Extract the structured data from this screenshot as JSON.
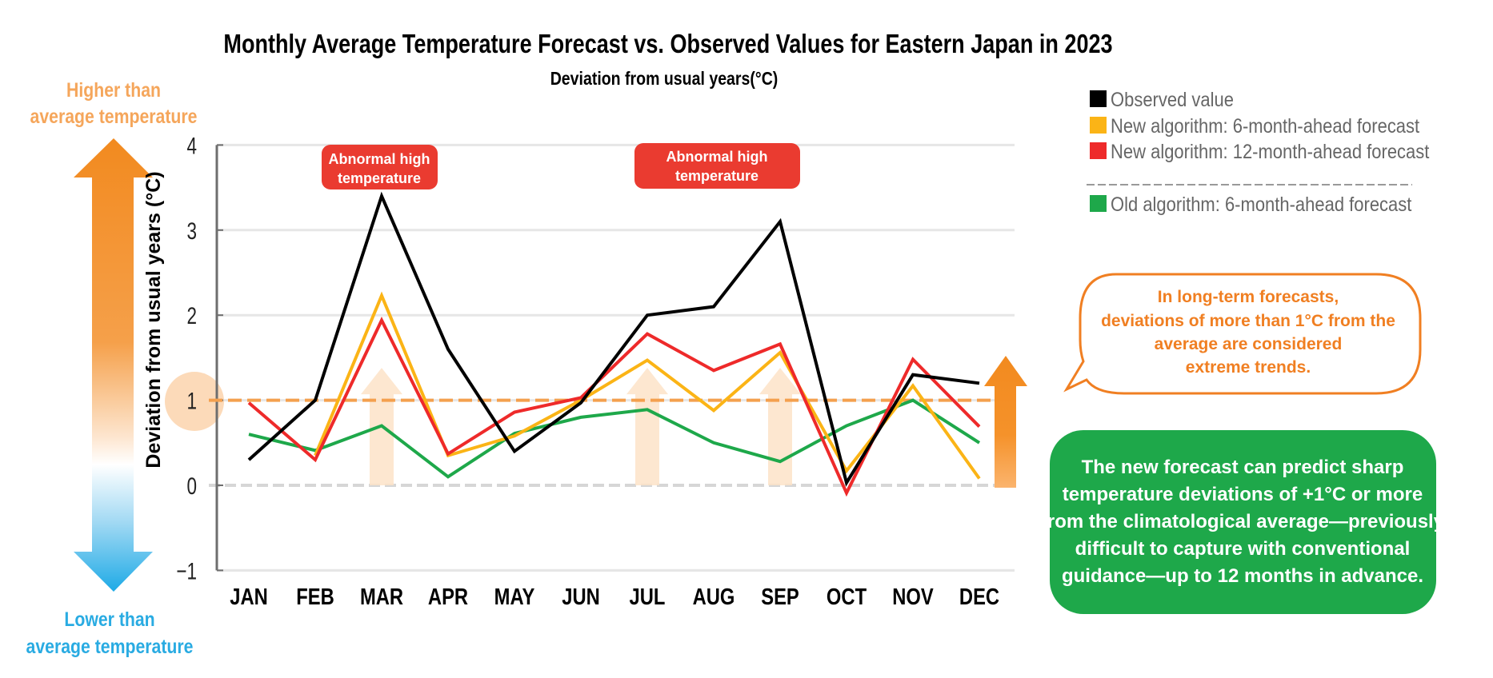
{
  "header": {
    "title": "Monthly Average Temperature Forecast vs. Observed Values for Eastern Japan in 2023",
    "subtitle": "Deviation from usual years(°C)"
  },
  "side_scale": {
    "higher_label": [
      "Higher than",
      "average temperature"
    ],
    "lower_label": [
      "Lower than",
      "average temperature"
    ],
    "higher_color": "#f5a65b",
    "lower_color": "#29abe2",
    "arrow_top_color": "#f28a1f",
    "arrow_bottom_color": "#29abe2"
  },
  "annotations": {
    "badges": [
      {
        "month": "MAR",
        "lines": [
          "Abnormal high",
          "temperature"
        ]
      },
      {
        "month": "JUL–SEP",
        "lines": [
          "Abnormal high",
          "temperature"
        ]
      }
    ],
    "badge_color": "#ea3b30",
    "highlight_arrow_months": [
      "MAR",
      "JUL",
      "SEP"
    ],
    "threshold_value": 1,
    "threshold_color": "#f4a04e",
    "bubble": {
      "lines": [
        "In long-term forecasts,",
        "deviations of more than 1°C from the",
        "average are considered",
        "extreme trends."
      ],
      "color": "#f07f22"
    },
    "note": {
      "lines": [
        "The new forecast can predict sharp",
        "temperature deviations of +1°C or more",
        "from the climatological average—previously",
        "difficult to capture with conventional",
        "guidance—up to 12 months in advance."
      ],
      "color": "#1ea84a"
    }
  },
  "chart_data": {
    "type": "line",
    "title": "Monthly Average Temperature Forecast vs. Observed Values for Eastern Japan in 2023",
    "subtitle": "Deviation from usual years(°C)",
    "xlabel": "",
    "ylabel": "Deviation from usual years (°C)",
    "categories": [
      "JAN",
      "FEB",
      "MAR",
      "APR",
      "MAY",
      "JUN",
      "JUL",
      "AUG",
      "SEP",
      "OCT",
      "NOV",
      "DEC"
    ],
    "ylim": [
      -1,
      4
    ],
    "yticks": [
      "4",
      "3",
      "2",
      "1",
      "0",
      "−1"
    ],
    "ytick_values": [
      4,
      3,
      2,
      1,
      0,
      -1
    ],
    "grid": true,
    "legend_position": "top-right",
    "series": [
      {
        "name": "Observed value",
        "color": "#000000",
        "values": [
          0.3,
          1.0,
          3.4,
          1.6,
          0.4,
          0.97,
          2.0,
          2.1,
          3.1,
          0.03,
          1.3,
          1.2
        ]
      },
      {
        "name": "New algorithm: 6-month-ahead forecast",
        "color": "#fbb416",
        "values": [
          null,
          0.35,
          2.23,
          0.35,
          0.58,
          1.0,
          1.47,
          0.88,
          1.56,
          0.17,
          1.17,
          0.08
        ]
      },
      {
        "name": "New algorithm: 12-month-ahead forecast",
        "color": "#ee2a2a",
        "values": [
          0.97,
          0.3,
          1.94,
          0.37,
          0.86,
          1.03,
          1.78,
          1.35,
          1.66,
          -0.09,
          1.48,
          0.69
        ]
      },
      {
        "name": "Old algorithm: 6-month-ahead forecast",
        "color": "#1ea84a",
        "values": [
          0.6,
          0.41,
          0.7,
          0.1,
          0.61,
          0.8,
          0.89,
          0.5,
          0.28,
          0.7,
          1.0,
          0.5
        ]
      }
    ],
    "legend": [
      {
        "label": "Observed value",
        "color": "#000000"
      },
      {
        "label": "New algorithm: 6-month-ahead forecast",
        "color": "#fbb416"
      },
      {
        "label": "New algorithm: 12-month-ahead forecast",
        "color": "#ee2a2a"
      },
      {
        "label": "Old algorithm: 6-month-ahead forecast",
        "color": "#1ea84a"
      }
    ]
  }
}
